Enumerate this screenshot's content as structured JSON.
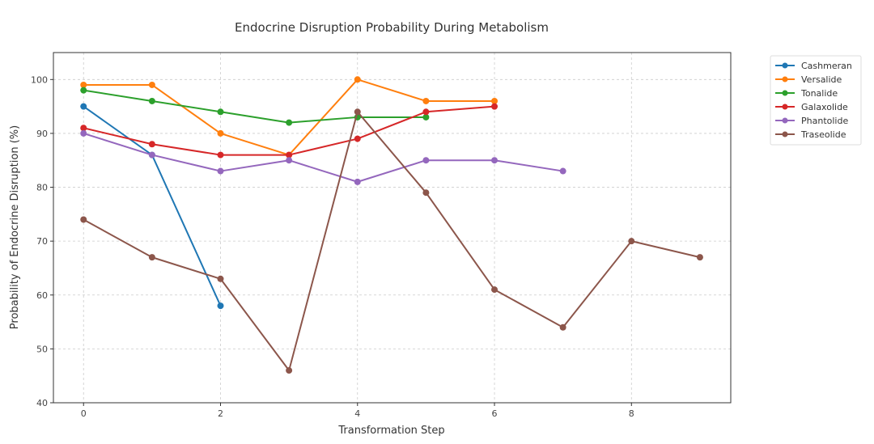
{
  "chart_data": {
    "type": "line",
    "title": "Endocrine Disruption Probability During Metabolism",
    "xlabel": "Transformation Step",
    "ylabel": "Probability of Endocrine Disruption (%)",
    "xlim": [
      -0.44,
      9.45
    ],
    "ylim": [
      40,
      105
    ],
    "xticks": [
      0,
      2,
      4,
      6,
      8
    ],
    "yticks": [
      40,
      50,
      60,
      70,
      80,
      90,
      100
    ],
    "grid": true,
    "legend_position": "outside-top-right",
    "series": [
      {
        "name": "Cashmeran",
        "color": "#1f77b4",
        "x": [
          0,
          1,
          2
        ],
        "values": [
          95,
          86,
          58
        ]
      },
      {
        "name": "Versalide",
        "color": "#ff7f0e",
        "x": [
          0,
          1,
          2,
          3,
          4,
          5,
          6
        ],
        "values": [
          99,
          99,
          90,
          86,
          100,
          96,
          96
        ]
      },
      {
        "name": "Tonalide",
        "color": "#2ca02c",
        "x": [
          0,
          1,
          2,
          3,
          4,
          5
        ],
        "values": [
          98,
          96,
          94,
          92,
          93,
          93
        ]
      },
      {
        "name": "Galaxolide",
        "color": "#d62728",
        "x": [
          0,
          1,
          2,
          3,
          4,
          5,
          6
        ],
        "values": [
          91,
          88,
          86,
          86,
          89,
          94,
          95
        ]
      },
      {
        "name": "Phantolide",
        "color": "#9467bd",
        "x": [
          0,
          1,
          2,
          3,
          4,
          5,
          6,
          7
        ],
        "values": [
          90,
          86,
          83,
          85,
          81,
          85,
          85,
          83
        ]
      },
      {
        "name": "Traseolide",
        "color": "#8c564b",
        "x": [
          0,
          1,
          2,
          3,
          4,
          5,
          6,
          7,
          8,
          9
        ],
        "values": [
          74,
          67,
          63,
          46,
          94,
          79,
          61,
          54,
          70,
          67
        ]
      }
    ]
  }
}
